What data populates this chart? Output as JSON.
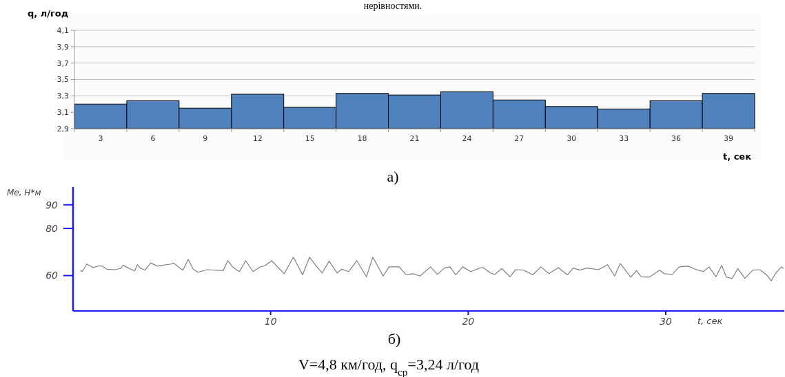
{
  "chart_data": [
    {
      "type": "bar",
      "xlabel": "t, сек",
      "ylabel": "q, л/год",
      "categories": [
        "3",
        "6",
        "9",
        "12",
        "15",
        "18",
        "21",
        "24",
        "27",
        "30",
        "33",
        "36",
        "39"
      ],
      "values": [
        3.2,
        3.24,
        3.15,
        3.32,
        3.16,
        3.33,
        3.31,
        3.35,
        3.25,
        3.17,
        3.14,
        3.24,
        3.33
      ],
      "color": "#4f81bd",
      "ylim": [
        2.9,
        4.1
      ],
      "yticks": [
        {
          "value": 2.9,
          "label": "2,9"
        },
        {
          "value": 3.1,
          "label": "3,1"
        },
        {
          "value": 3.3,
          "label": "3,3"
        },
        {
          "value": 3.5,
          "label": "3,5"
        },
        {
          "value": 3.7,
          "label": "3,7"
        },
        {
          "value": 3.9,
          "label": "3,9"
        },
        {
          "value": 4.1,
          "label": "4,1"
        }
      ],
      "grid": "y",
      "annotations": [
        "нерівностями.",
        "а)"
      ]
    },
    {
      "type": "line",
      "xlabel": "t, сек",
      "ylabel": "Me, Н*м",
      "x": [
        0.37,
        0.46,
        0.7,
        1.01,
        1.3,
        1.48,
        1.71,
        2.12,
        2.41,
        2.53,
        2.68,
        3.11,
        3.26,
        3.4,
        3.64,
        3.93,
        4.28,
        4.45,
        4.98,
        5.09,
        5.27,
        5.56,
        5.83,
        6.08,
        6.32,
        6.78,
        7.6,
        7.83,
        8.07,
        8.42,
        8.74,
        9.11,
        9.47,
        9.7,
        10.05,
        10.69,
        11.15,
        11.62,
        11.97,
        12.26,
        12.61,
        12.96,
        13.37,
        13.6,
        13.95,
        14.36,
        14.85,
        15.17,
        15.7,
        15.99,
        16.51,
        16.86,
        17.21,
        17.56,
        18.09,
        18.44,
        18.79,
        19.08,
        19.37,
        19.72,
        20.13,
        20.59,
        20.77,
        21.12,
        21.35,
        21.7,
        22.11,
        22.4,
        22.81,
        23.27,
        23.68,
        24.09,
        24.56,
        25.02,
        25.31,
        25.66,
        26.01,
        26.6,
        27.06,
        27.41,
        27.7,
        28.23,
        28.52,
        28.75,
        29.16,
        29.69,
        29.92,
        30.33,
        30.68,
        31.14,
        31.49,
        31.9,
        32.19,
        32.54,
        32.83,
        33.07,
        33.36,
        33.65,
        34.0,
        34.41,
        34.76,
        35.1,
        35.34,
        35.57,
        35.86,
        35.95
      ],
      "series": [
        {
          "color": "#808080",
          "values": [
            62.2,
            61.7,
            64.9,
            63.4,
            64.1,
            64.0,
            62.7,
            62.5,
            63.0,
            64.4,
            63.7,
            62.0,
            64.6,
            63.2,
            62.3,
            65.3,
            64.0,
            64.3,
            64.9,
            65.3,
            64.1,
            62.3,
            66.9,
            62.7,
            61.4,
            62.5,
            62.1,
            66.3,
            63.7,
            61.7,
            66.3,
            61.7,
            63.7,
            64.1,
            66.3,
            60.8,
            67.8,
            60.3,
            67.8,
            64.6,
            61.1,
            66.1,
            61.1,
            62.7,
            61.7,
            66.3,
            59.5,
            67.8,
            59.8,
            63.7,
            63.7,
            60.3,
            60.8,
            59.8,
            63.7,
            60.5,
            63.2,
            63.7,
            60.3,
            63.7,
            61.7,
            63.2,
            63.4,
            61.1,
            60.5,
            63.0,
            59.5,
            62.5,
            62.3,
            60.3,
            63.7,
            60.8,
            63.4,
            60.3,
            63.2,
            62.3,
            63.2,
            62.5,
            64.6,
            59.8,
            65.1,
            59.3,
            62.1,
            59.5,
            59.3,
            62.3,
            60.8,
            60.5,
            63.7,
            64.0,
            62.7,
            61.7,
            63.7,
            59.5,
            64.3,
            59.3,
            58.8,
            63.0,
            58.8,
            62.3,
            62.5,
            60.3,
            57.8,
            61.1,
            63.7,
            63.0
          ]
        }
      ],
      "xlim": [
        0,
        36
      ],
      "xticks": [
        10,
        20,
        30
      ],
      "ylim": [
        45,
        97.5
      ],
      "yticks": [
        60,
        80,
        90
      ],
      "annotations": [
        "б)",
        "V=4,8 км/год, q$_{ср}$=3,24 л/год"
      ]
    }
  ]
}
